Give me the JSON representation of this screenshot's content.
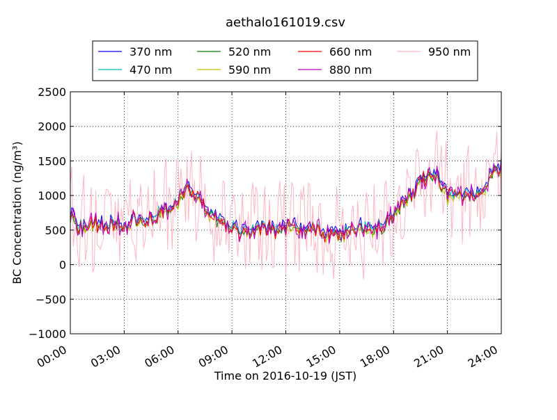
{
  "chart_data": {
    "type": "line",
    "title": "aethalo161019.csv",
    "xlabel": "Time on 2016-10-19 (JST)",
    "ylabel": "BC Concentration (ng/m³)",
    "xlim": [
      "00:00",
      "24:00"
    ],
    "ylim": [
      -1000,
      2500
    ],
    "x_ticks": [
      "00:00",
      "03:00",
      "06:00",
      "09:00",
      "12:00",
      "15:00",
      "18:00",
      "21:00",
      "24:00"
    ],
    "y_ticks": [
      "2500",
      "2000",
      "1500",
      "1000",
      "500",
      "0",
      "−500",
      "−1000"
    ],
    "grid": true,
    "legend_position": "top",
    "series": [
      {
        "name": "370 nm",
        "color": "#0000ff"
      },
      {
        "name": "470 nm",
        "color": "#00bfbf"
      },
      {
        "name": "520 nm",
        "color": "#008000"
      },
      {
        "name": "590 nm",
        "color": "#bfbf00"
      },
      {
        "name": "660 nm",
        "color": "#ff0000"
      },
      {
        "name": "880 nm",
        "color": "#bf00bf"
      },
      {
        "name": "950 nm",
        "color": "#ffb6c1"
      }
    ],
    "x": [
      "00:00",
      "00:30",
      "01:00",
      "01:30",
      "02:00",
      "02:30",
      "03:00",
      "03:30",
      "04:00",
      "04:30",
      "05:00",
      "05:30",
      "06:00",
      "06:30",
      "07:00",
      "07:30",
      "08:00",
      "08:30",
      "09:00",
      "09:30",
      "10:00",
      "10:30",
      "11:00",
      "11:30",
      "12:00",
      "12:30",
      "13:00",
      "13:30",
      "14:00",
      "14:30",
      "15:00",
      "15:30",
      "16:00",
      "16:30",
      "17:00",
      "17:30",
      "18:00",
      "18:30",
      "19:00",
      "19:30",
      "20:00",
      "20:30",
      "21:00",
      "21:30",
      "22:00",
      "22:30",
      "23:00",
      "23:30",
      "24:00"
    ],
    "baseline": [
      700,
      520,
      560,
      600,
      540,
      620,
      560,
      650,
      700,
      640,
      750,
      800,
      900,
      1150,
      1000,
      820,
      700,
      620,
      520,
      480,
      460,
      520,
      540,
      480,
      520,
      560,
      500,
      520,
      480,
      460,
      380,
      500,
      520,
      560,
      520,
      600,
      720,
      880,
      1000,
      1200,
      1350,
      1250,
      1000,
      950,
      1050,
      980,
      1100,
      1300,
      1450
    ],
    "series_offsets": {
      "370 nm": 40,
      "470 nm": 10,
      "520 nm": -20,
      "590 nm": -30,
      "660 nm": -5,
      "880 nm": 0
    },
    "noise_amplitude": {
      "370 nm": 130,
      "470 nm": 130,
      "520 nm": 135,
      "590 nm": 135,
      "660 nm": 150,
      "880 nm": 200,
      "950 nm": 700
    }
  }
}
